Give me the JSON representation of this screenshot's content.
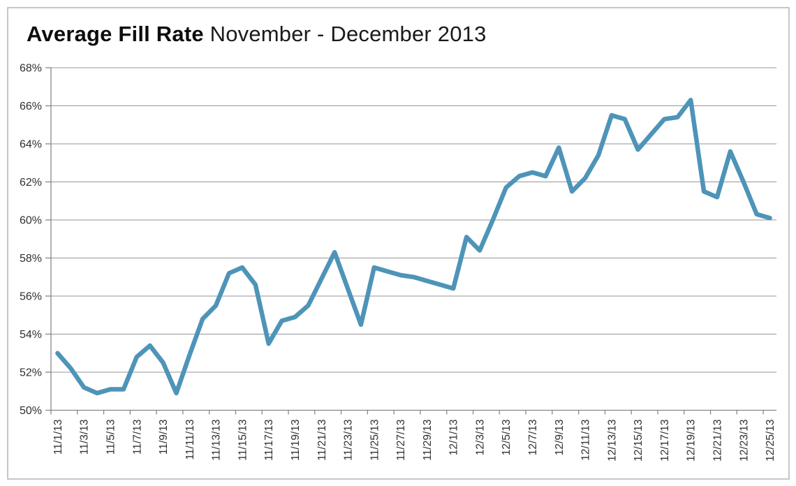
{
  "title": {
    "bold": "Average Fill Rate",
    "rest": " November - December 2013"
  },
  "colors": {
    "line": "#4e94b8",
    "grid": "#969696",
    "axis": "#878787",
    "labels": "#303030",
    "title": "#000000",
    "border": "#c6c6c6",
    "background": "#ffffff"
  },
  "chart_data": {
    "type": "line",
    "title": "Average Fill Rate November - December 2013",
    "x": [
      "11/1/13",
      "11/2/13",
      "11/3/13",
      "11/4/13",
      "11/5/13",
      "11/6/13",
      "11/7/13",
      "11/8/13",
      "11/9/13",
      "11/10/13",
      "11/11/13",
      "11/12/13",
      "11/13/13",
      "11/14/13",
      "11/15/13",
      "11/16/13",
      "11/17/13",
      "11/18/13",
      "11/19/13",
      "11/20/13",
      "11/21/13",
      "11/22/13",
      "11/23/13",
      "11/24/13",
      "11/25/13",
      "11/26/13",
      "11/27/13",
      "11/28/13",
      "11/29/13",
      "11/30/13",
      "12/1/13",
      "12/2/13",
      "12/3/13",
      "12/4/13",
      "12/5/13",
      "12/6/13",
      "12/7/13",
      "12/8/13",
      "12/9/13",
      "12/10/13",
      "12/11/13",
      "12/12/13",
      "12/13/13",
      "12/14/13",
      "12/15/13",
      "12/16/13",
      "12/17/13",
      "12/18/13",
      "12/19/13",
      "12/20/13",
      "12/21/13",
      "12/22/13",
      "12/23/13",
      "12/24/13",
      "12/25/13"
    ],
    "values": [
      53.0,
      52.2,
      51.2,
      50.9,
      51.1,
      51.1,
      52.8,
      53.4,
      52.5,
      50.9,
      52.9,
      54.8,
      55.5,
      57.2,
      57.5,
      56.6,
      53.5,
      54.7,
      54.9,
      55.5,
      56.9,
      58.3,
      56.4,
      54.5,
      57.5,
      57.3,
      57.1,
      57.0,
      56.8,
      56.6,
      56.4,
      59.1,
      58.4,
      60.0,
      61.7,
      62.3,
      62.5,
      62.3,
      63.8,
      61.5,
      62.2,
      63.4,
      65.5,
      65.3,
      63.7,
      64.5,
      65.3,
      65.4,
      66.3,
      61.5,
      61.2,
      63.6,
      62.0,
      60.3,
      60.1
    ],
    "xlabel": "",
    "ylabel": "",
    "ylim": [
      50,
      68
    ],
    "ytick_step": 2,
    "ytick_suffix": "%",
    "xlabel_every": 2,
    "xlabel_rotation": -90,
    "grid": "horizontal",
    "legend_position": "none",
    "line_width": 6.5
  }
}
